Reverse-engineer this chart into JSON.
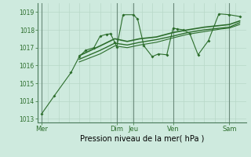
{
  "background_color": "#ceeade",
  "grid_color": "#b8d8c8",
  "line_color": "#2d6e2d",
  "vline_color": "#6a8a7a",
  "xlabel": "Pression niveau de la mer( hPa )",
  "ylim": [
    1012.8,
    1019.5
  ],
  "xlim": [
    0,
    100
  ],
  "yticks": [
    1013,
    1014,
    1015,
    1016,
    1017,
    1018,
    1019
  ],
  "xtick_labels": [
    "Mer",
    "Dim",
    "Jeu",
    "Ven",
    "Sam"
  ],
  "xtick_positions": [
    2,
    38,
    46,
    65,
    92
  ],
  "vline_positions": [
    2,
    38,
    46,
    65,
    92
  ],
  "series1": {
    "x": [
      2,
      8,
      16,
      20,
      23,
      27,
      30,
      33,
      35,
      37,
      38,
      41,
      46,
      48,
      51,
      55,
      58,
      62,
      65,
      67,
      70,
      73,
      77,
      82,
      87,
      92,
      97
    ],
    "y": [
      1013.3,
      1014.3,
      1015.6,
      1016.5,
      1016.85,
      1017.0,
      1017.65,
      1017.75,
      1017.78,
      1017.3,
      1017.05,
      1018.85,
      1018.85,
      1018.6,
      1017.1,
      1016.5,
      1016.65,
      1016.6,
      1018.1,
      1018.05,
      1018.0,
      1017.8,
      1016.6,
      1017.4,
      1018.9,
      1018.85,
      1018.75
    ]
  },
  "series2": {
    "x": [
      20,
      30,
      37,
      43,
      49,
      57,
      65,
      72,
      80,
      88,
      92,
      97
    ],
    "y": [
      1016.55,
      1017.1,
      1017.5,
      1017.35,
      1017.5,
      1017.6,
      1017.85,
      1018.0,
      1018.15,
      1018.25,
      1018.3,
      1018.5
    ]
  },
  "series3": {
    "x": [
      20,
      30,
      37,
      43,
      49,
      57,
      65,
      72,
      80,
      88,
      92,
      97
    ],
    "y": [
      1016.35,
      1016.85,
      1017.25,
      1017.15,
      1017.3,
      1017.45,
      1017.65,
      1017.85,
      1018.0,
      1018.1,
      1018.15,
      1018.4
    ]
  },
  "series4": {
    "x": [
      20,
      30,
      37,
      43,
      49,
      57,
      65,
      72,
      80,
      88,
      92,
      97
    ],
    "y": [
      1016.2,
      1016.65,
      1017.1,
      1017.0,
      1017.15,
      1017.3,
      1017.55,
      1017.75,
      1017.9,
      1018.05,
      1018.1,
      1018.3
    ]
  },
  "grid_x_step": 5,
  "ylabel_fontsize": 5.5,
  "xlabel_fontsize": 7,
  "xtick_fontsize": 6
}
